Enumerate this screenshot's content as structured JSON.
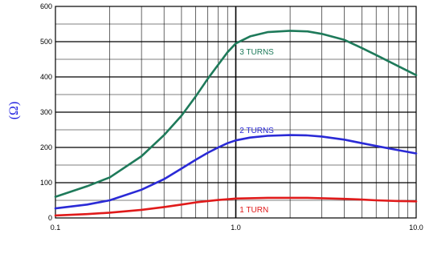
{
  "chart_data": {
    "type": "line",
    "title": "",
    "xlabel": "",
    "ylabel": "(Ω)",
    "ylabel_color": "#1f1fe0",
    "x_scale": "log",
    "xlim": [
      0.1,
      10.0
    ],
    "ylim": [
      0,
      600
    ],
    "x_tick_labels": [
      "0.1",
      "1.0",
      "10.0"
    ],
    "y_tick_labels": [
      "0",
      "100",
      "200",
      "300",
      "400",
      "500",
      "600"
    ],
    "grid": true,
    "legend": "none",
    "series": [
      {
        "name": "3 TURNS",
        "color": "#1e7a5a",
        "label_at": [
          1.05,
          473
        ],
        "x": [
          0.1,
          0.15,
          0.2,
          0.3,
          0.4,
          0.5,
          0.6,
          0.7,
          0.8,
          0.9,
          1.0,
          1.2,
          1.5,
          2.0,
          2.5,
          3.0,
          4.0,
          5.0,
          6.0,
          8.0,
          10.0
        ],
        "y": [
          60,
          90,
          115,
          175,
          235,
          290,
          345,
          395,
          435,
          470,
          495,
          515,
          527,
          531,
          529,
          522,
          505,
          482,
          462,
          430,
          405
        ]
      },
      {
        "name": "2 TURNS",
        "color": "#2a2ad6",
        "label_at": [
          1.05,
          250
        ],
        "x": [
          0.1,
          0.15,
          0.2,
          0.3,
          0.4,
          0.5,
          0.6,
          0.7,
          0.8,
          0.9,
          1.0,
          1.2,
          1.5,
          2.0,
          2.5,
          3.0,
          4.0,
          5.0,
          6.0,
          8.0,
          10.0
        ],
        "y": [
          27,
          38,
          50,
          80,
          110,
          140,
          165,
          185,
          200,
          212,
          220,
          228,
          233,
          235,
          234,
          231,
          222,
          212,
          204,
          192,
          183
        ]
      },
      {
        "name": "1 TURN",
        "color": "#e01a1a",
        "label_at": [
          1.05,
          25
        ],
        "x": [
          0.1,
          0.15,
          0.2,
          0.3,
          0.4,
          0.5,
          0.6,
          0.7,
          0.8,
          0.9,
          1.0,
          1.2,
          1.5,
          2.0,
          2.5,
          3.0,
          4.0,
          5.0,
          6.0,
          8.0,
          10.0
        ],
        "y": [
          7,
          11,
          15,
          23,
          31,
          38,
          44,
          48,
          51,
          53,
          55,
          56,
          57,
          57,
          57,
          56,
          54,
          52,
          50,
          48,
          47
        ]
      }
    ]
  }
}
